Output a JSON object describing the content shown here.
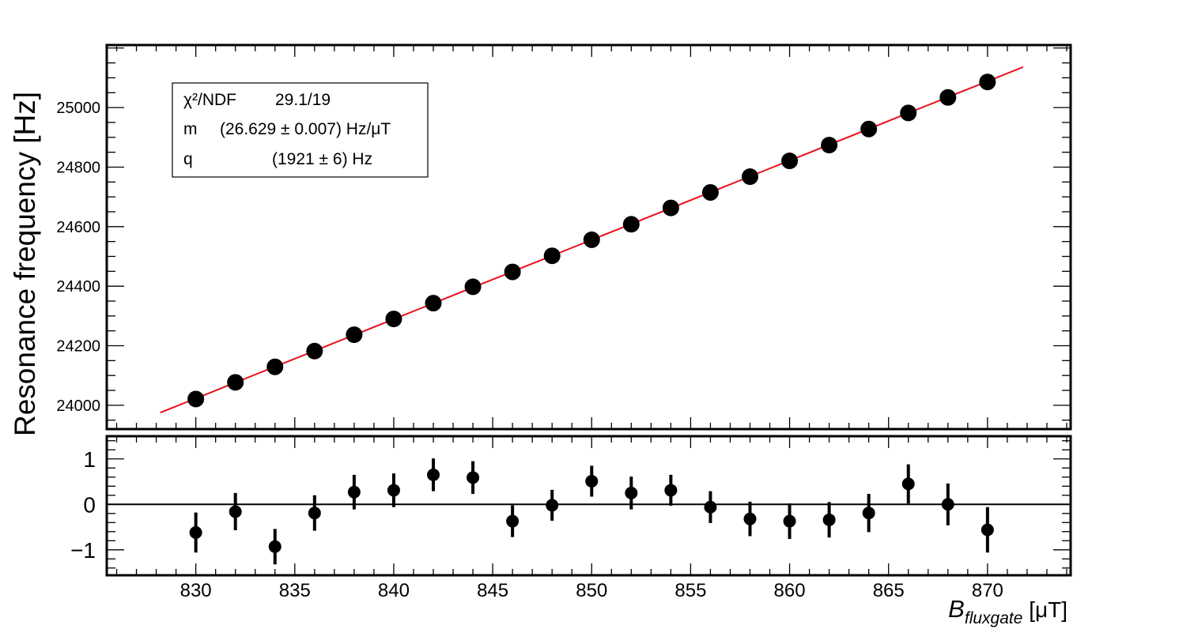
{
  "chart_data": [
    {
      "type": "scatter",
      "xlim": [
        825.5,
        874.2
      ],
      "ylim": [
        23920,
        25210
      ],
      "ylabel": "Resonance frequency [Hz]",
      "yticks": [
        24000,
        24200,
        24400,
        24600,
        24800,
        25000
      ],
      "series": [
        {
          "x": [
            830,
            832,
            834,
            836,
            838,
            840,
            842,
            844,
            846,
            848,
            850,
            852,
            854,
            856,
            858,
            860,
            862,
            864,
            866,
            868,
            870
          ],
          "y": [
            24021,
            24077,
            24129,
            24182,
            24237,
            24290,
            24343,
            24398,
            24448,
            24502,
            24556,
            24608,
            24663,
            24715,
            24768,
            24821,
            24874,
            24928,
            24982,
            25034,
            25086
          ]
        }
      ],
      "fit": {
        "x_range": [
          828.2,
          871.8
        ],
        "slope": 26.629,
        "intercept": 1921,
        "color": "#e8101c"
      },
      "stats_box": {
        "rows": [
          {
            "label": "χ²/NDF",
            "value": "29.1/19"
          },
          {
            "label": "m",
            "value": "(26.629 ± 0.007) Hz/μT"
          },
          {
            "label": "q",
            "value": "(1921 ± 6) Hz"
          }
        ]
      }
    },
    {
      "type": "scatter",
      "xlim": [
        825.5,
        874.2
      ],
      "ylim": [
        -1.56,
        1.5
      ],
      "xlabel_main": "B",
      "xlabel_sub": "fluxgate",
      "xlabel_unit": " [μT]",
      "xticks": [
        830,
        835,
        840,
        845,
        850,
        855,
        860,
        865,
        870
      ],
      "yticks": [
        -1,
        0,
        1
      ],
      "ytick_labels": [
        "−1",
        "0",
        "1"
      ],
      "series": [
        {
          "x": [
            830,
            832,
            834,
            836,
            838,
            840,
            842,
            844,
            846,
            848,
            850,
            852,
            854,
            856,
            858,
            860,
            862,
            864,
            866,
            868,
            870
          ],
          "y": [
            -0.62,
            -0.16,
            -0.93,
            -0.19,
            0.27,
            0.31,
            0.65,
            0.59,
            -0.37,
            -0.02,
            0.51,
            0.25,
            0.31,
            -0.06,
            -0.32,
            -0.37,
            -0.34,
            -0.19,
            0.45,
            0.0,
            -0.56
          ],
          "yerr": [
            0.44,
            0.41,
            0.39,
            0.39,
            0.38,
            0.37,
            0.36,
            0.36,
            0.35,
            0.34,
            0.34,
            0.36,
            0.34,
            0.35,
            0.38,
            0.39,
            0.39,
            0.42,
            0.43,
            0.46,
            0.5
          ]
        }
      ]
    }
  ]
}
